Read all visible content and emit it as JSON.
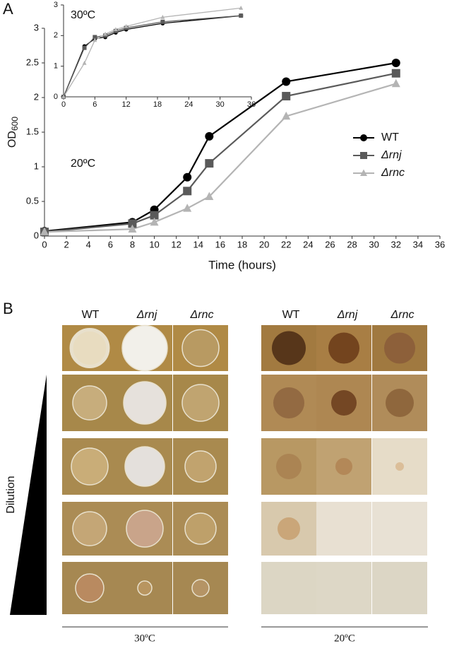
{
  "panel_a": {
    "label": "A"
  },
  "chart_data": [
    {
      "type": "line",
      "x_label": "Time (hours)",
      "y_label": {
        "text": "OD",
        "subscript": "600"
      },
      "annotation": "20ºC",
      "x": [
        0,
        8,
        10,
        13,
        15,
        22,
        32
      ],
      "xlim": [
        0,
        36
      ],
      "xticks": [
        0,
        2,
        4,
        6,
        8,
        10,
        12,
        14,
        16,
        18,
        20,
        22,
        24,
        26,
        28,
        30,
        32,
        34,
        36
      ],
      "ylim": [
        0,
        3
      ],
      "yticks": [
        0,
        0.5,
        1,
        1.5,
        2,
        2.5,
        3
      ],
      "legend": "right",
      "series": [
        {
          "name": "WT",
          "color": "#000000",
          "marker": "circle",
          "values": [
            0.07,
            0.2,
            0.38,
            0.85,
            1.44,
            2.23,
            2.5
          ]
        },
        {
          "name": "Δrnj",
          "color": "#5a5a5a",
          "marker": "square",
          "values": [
            0.06,
            0.18,
            0.3,
            0.65,
            1.05,
            2.02,
            2.35
          ]
        },
        {
          "name": "Δrnc",
          "color": "#b4b4b4",
          "marker": "triangle",
          "values": [
            0.06,
            0.1,
            0.2,
            0.4,
            0.57,
            1.73,
            2.2
          ]
        }
      ]
    },
    {
      "type": "line",
      "annotation": "30ºC",
      "x": [
        0,
        4,
        6,
        8,
        10,
        12,
        19,
        34
      ],
      "xlim": [
        0,
        36
      ],
      "xticks": [
        0,
        6,
        12,
        18,
        24,
        30,
        36
      ],
      "ylim": [
        0,
        3
      ],
      "yticks": [
        0,
        1,
        2,
        3
      ],
      "series": [
        {
          "name": "WT",
          "color": "#000000",
          "marker": "circle",
          "values": [
            0,
            1.65,
            1.9,
            1.95,
            2.1,
            2.2,
            2.4,
            2.65
          ]
        },
        {
          "name": "Δrnj",
          "color": "#5a5a5a",
          "marker": "square",
          "values": [
            0,
            1.6,
            1.95,
            2.0,
            2.15,
            2.25,
            2.45,
            2.65
          ]
        },
        {
          "name": "Δrnc",
          "color": "#b4b4b4",
          "marker": "triangle",
          "values": [
            0,
            1.1,
            1.85,
            2.05,
            2.2,
            2.3,
            2.6,
            2.9
          ]
        }
      ]
    }
  ],
  "panel_b": {
    "label": "B",
    "dilution": "Dilution",
    "left": {
      "columns": [
        "WT",
        "Δrnj",
        "Δrnc"
      ],
      "temperature": "30ºC"
    },
    "right": {
      "columns": [
        "WT",
        "Δrnj",
        "Δrnc"
      ],
      "temperature": "20ºC"
    }
  }
}
